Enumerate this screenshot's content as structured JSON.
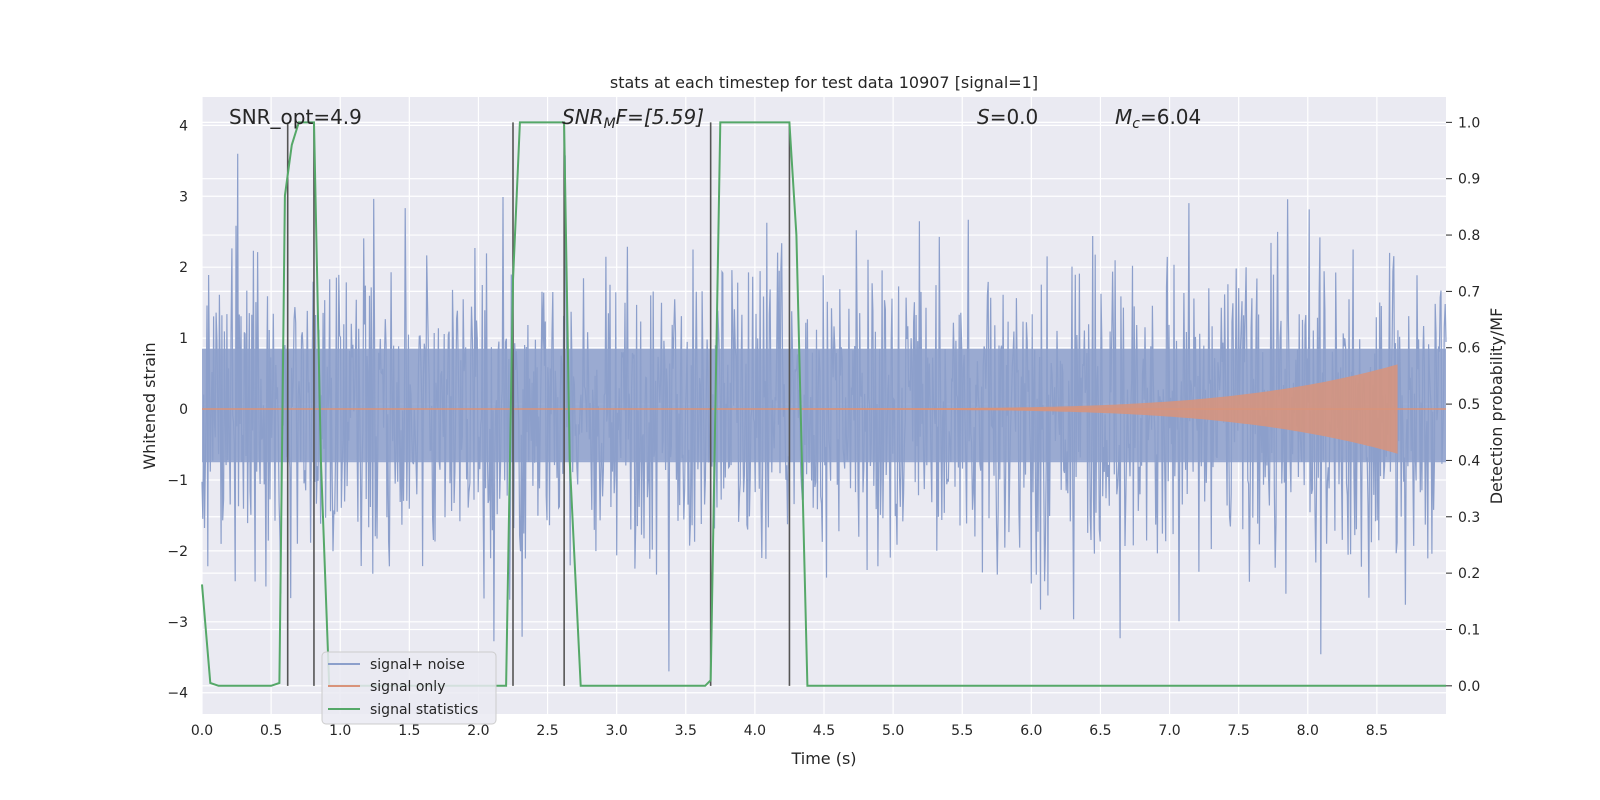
{
  "chart_data": {
    "type": "line",
    "title": "stats at each timestep for test data 10907 [signal=1]",
    "xlabel": "Time (s)",
    "ylabel": "Whitened strain",
    "y2label": "Detection probability/MF",
    "xlim": [
      0.0,
      9.0
    ],
    "ylim": [
      -4.3,
      4.4
    ],
    "y2lim": [
      -0.05,
      1.045
    ],
    "xticks": [
      "0.0",
      "0.5",
      "1.0",
      "1.5",
      "2.0",
      "2.5",
      "3.0",
      "3.5",
      "4.0",
      "4.5",
      "5.0",
      "5.5",
      "6.0",
      "6.5",
      "7.0",
      "7.5",
      "8.0",
      "8.5"
    ],
    "yticks": [
      "−4",
      "−3",
      "−2",
      "−1",
      "0",
      "1",
      "2",
      "3",
      "4"
    ],
    "y2ticks": [
      "0.0",
      "0.1",
      "0.2",
      "0.3",
      "0.4",
      "0.5",
      "0.6",
      "0.7",
      "0.8",
      "0.9",
      "1.0"
    ],
    "grid": true,
    "legend": {
      "position": "lower-left",
      "entries": [
        "signal+ noise",
        "signal only",
        "signal statistics"
      ]
    },
    "annotations": {
      "snr_opt": "SNR_opt=4.9",
      "snr_mf_main": "SNR",
      "snr_mf_sub": "M",
      "snr_mf_rest": "F=[5.59]",
      "s_main": "S",
      "s_rest": "=0.0",
      "mc_main": "M",
      "mc_sub": "c",
      "mc_rest": "=6.04"
    },
    "noise": {
      "amplitude_typical": 1.5,
      "amplitude_max": 3.6,
      "amplitude_min": -3.7,
      "t_start": 0.0,
      "t_end": 9.0
    },
    "signal_only": {
      "t_start": 4.2,
      "t_peak": 8.65,
      "peak_amplitude": 0.62
    },
    "detection_boundaries": [
      0.62,
      0.81,
      2.25,
      2.62,
      3.68,
      4.25
    ],
    "series": [
      {
        "name": "signal statistics",
        "axis": "y2",
        "x": [
          0.0,
          0.06,
          0.12,
          0.5,
          0.56,
          0.6,
          0.65,
          0.7,
          0.81,
          0.86,
          0.92,
          0.95,
          2.2,
          2.25,
          2.3,
          2.62,
          2.66,
          2.74,
          3.64,
          3.68,
          3.75,
          4.25,
          4.3,
          4.38,
          9.0
        ],
        "y": [
          0.18,
          0.005,
          0.0,
          0.0,
          0.005,
          0.87,
          0.96,
          1.0,
          1.0,
          0.4,
          0.0,
          0.0,
          0.0,
          0.72,
          1.0,
          1.0,
          0.4,
          0.0,
          0.0,
          0.01,
          1.0,
          1.0,
          0.8,
          0.0,
          0.0
        ]
      }
    ],
    "colors": {
      "noise": "#8c9fcb",
      "signal": "#d9937a",
      "statistics": "#55a868",
      "boundary": "#555555",
      "axes_bg": "#eaeaf2",
      "grid": "#ffffff"
    }
  }
}
